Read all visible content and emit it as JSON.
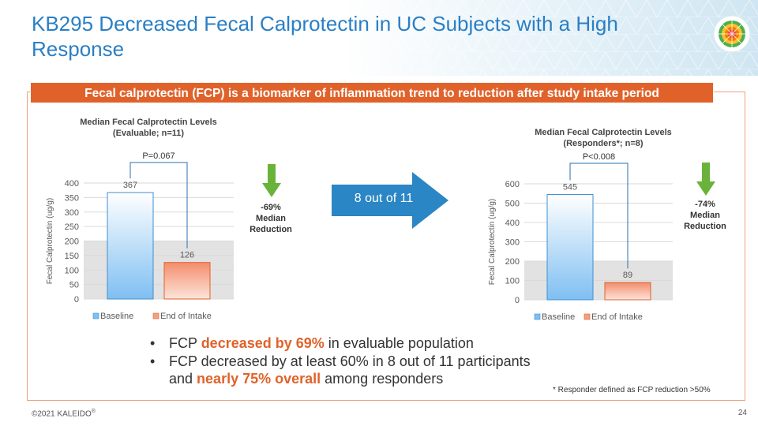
{
  "slide": {
    "title": "KB295 Decreased Fecal Calprotectin in UC Subjects with a High Response",
    "banner": "Fecal calprotectin (FCP) is a biomarker of inflammation trend to reduction after study intake period",
    "arrow_label": "8 out of 11",
    "footnote": "* Responder defined as FCP reduction >50%",
    "footer": "©2021 KALEIDO",
    "footer_reg": "®",
    "page_number": "24"
  },
  "left_callout": {
    "pct": "-69%",
    "line1": "Median",
    "line2": "Reduction"
  },
  "right_callout": {
    "pct": "-74%",
    "line1": "Median",
    "line2": "Reduction"
  },
  "bullets": [
    {
      "pre": "FCP ",
      "hl": "decreased by 69%",
      "post": " in evaluable population"
    },
    {
      "pre": "FCP decreased by at least 60% in 8 out of 11 participants",
      "line2_pre": "and ",
      "hl": "nearly 75% overall",
      "post": " among responders"
    }
  ],
  "colors": {
    "title": "#2a7fc4",
    "accent": "#e0622a",
    "baseline": "#7fbff2",
    "end": "#f3a084",
    "arrow": "#2a86c4",
    "callout_arrow": "#6ab33a"
  },
  "chart_data": [
    {
      "type": "bar",
      "title_line1": "Median Fecal Calprotectin Levels",
      "title_line2": "(Evaluable; n=11)",
      "categories": [
        "Baseline",
        "End of Intake"
      ],
      "values": [
        367,
        126
      ],
      "value_labels": [
        "367",
        "126"
      ],
      "ylabel": "Fecal Calprotectin (ug/g)",
      "ylim": [
        0,
        400
      ],
      "yticks": [
        "0",
        "50",
        "100",
        "150",
        "200",
        "250",
        "300",
        "350",
        "400"
      ],
      "shaded_band": [
        0,
        200
      ],
      "pvalue": "P=0.067",
      "legend": [
        "Baseline",
        "End of Intake"
      ]
    },
    {
      "type": "bar",
      "title_line1": "Median Fecal Calprotectin Levels",
      "title_line2": "(Responders*; n=8)",
      "categories": [
        "Baseline",
        "End of Intake"
      ],
      "values": [
        545,
        89
      ],
      "value_labels": [
        "545",
        "89"
      ],
      "ylabel": "Fecal Calprotectin (ug/g)",
      "ylim": [
        0,
        600
      ],
      "yticks": [
        "0",
        "100",
        "200",
        "300",
        "400",
        "500",
        "600"
      ],
      "shaded_band": [
        0,
        200
      ],
      "pvalue": "P<0.008",
      "legend": [
        "Baseline",
        "End of Intake"
      ]
    }
  ]
}
